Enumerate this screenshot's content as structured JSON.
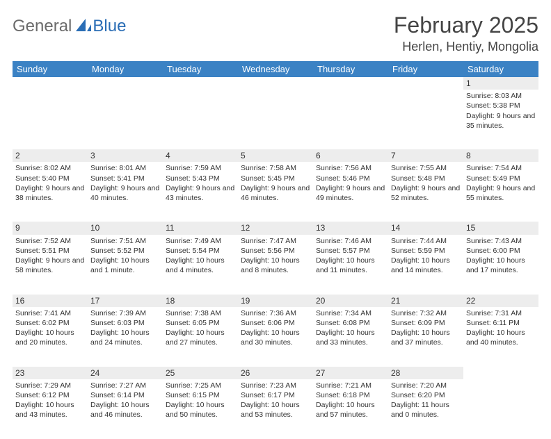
{
  "logo": {
    "text1": "General",
    "text2": "Blue"
  },
  "title": "February 2025",
  "location": "Herlen, Hentiy, Mongolia",
  "colors": {
    "header_bg": "#3b82c4",
    "header_text": "#ffffff",
    "daynum_bg": "#ededed",
    "text": "#333333",
    "logo_gray": "#6b6b6b",
    "logo_blue": "#2a6db5"
  },
  "weekdays": [
    "Sunday",
    "Monday",
    "Tuesday",
    "Wednesday",
    "Thursday",
    "Friday",
    "Saturday"
  ],
  "weeks": [
    [
      null,
      null,
      null,
      null,
      null,
      null,
      {
        "n": "1",
        "sr": "Sunrise: 8:03 AM",
        "ss": "Sunset: 5:38 PM",
        "dl": "Daylight: 9 hours and 35 minutes."
      }
    ],
    [
      {
        "n": "2",
        "sr": "Sunrise: 8:02 AM",
        "ss": "Sunset: 5:40 PM",
        "dl": "Daylight: 9 hours and 38 minutes."
      },
      {
        "n": "3",
        "sr": "Sunrise: 8:01 AM",
        "ss": "Sunset: 5:41 PM",
        "dl": "Daylight: 9 hours and 40 minutes."
      },
      {
        "n": "4",
        "sr": "Sunrise: 7:59 AM",
        "ss": "Sunset: 5:43 PM",
        "dl": "Daylight: 9 hours and 43 minutes."
      },
      {
        "n": "5",
        "sr": "Sunrise: 7:58 AM",
        "ss": "Sunset: 5:45 PM",
        "dl": "Daylight: 9 hours and 46 minutes."
      },
      {
        "n": "6",
        "sr": "Sunrise: 7:56 AM",
        "ss": "Sunset: 5:46 PM",
        "dl": "Daylight: 9 hours and 49 minutes."
      },
      {
        "n": "7",
        "sr": "Sunrise: 7:55 AM",
        "ss": "Sunset: 5:48 PM",
        "dl": "Daylight: 9 hours and 52 minutes."
      },
      {
        "n": "8",
        "sr": "Sunrise: 7:54 AM",
        "ss": "Sunset: 5:49 PM",
        "dl": "Daylight: 9 hours and 55 minutes."
      }
    ],
    [
      {
        "n": "9",
        "sr": "Sunrise: 7:52 AM",
        "ss": "Sunset: 5:51 PM",
        "dl": "Daylight: 9 hours and 58 minutes."
      },
      {
        "n": "10",
        "sr": "Sunrise: 7:51 AM",
        "ss": "Sunset: 5:52 PM",
        "dl": "Daylight: 10 hours and 1 minute."
      },
      {
        "n": "11",
        "sr": "Sunrise: 7:49 AM",
        "ss": "Sunset: 5:54 PM",
        "dl": "Daylight: 10 hours and 4 minutes."
      },
      {
        "n": "12",
        "sr": "Sunrise: 7:47 AM",
        "ss": "Sunset: 5:56 PM",
        "dl": "Daylight: 10 hours and 8 minutes."
      },
      {
        "n": "13",
        "sr": "Sunrise: 7:46 AM",
        "ss": "Sunset: 5:57 PM",
        "dl": "Daylight: 10 hours and 11 minutes."
      },
      {
        "n": "14",
        "sr": "Sunrise: 7:44 AM",
        "ss": "Sunset: 5:59 PM",
        "dl": "Daylight: 10 hours and 14 minutes."
      },
      {
        "n": "15",
        "sr": "Sunrise: 7:43 AM",
        "ss": "Sunset: 6:00 PM",
        "dl": "Daylight: 10 hours and 17 minutes."
      }
    ],
    [
      {
        "n": "16",
        "sr": "Sunrise: 7:41 AM",
        "ss": "Sunset: 6:02 PM",
        "dl": "Daylight: 10 hours and 20 minutes."
      },
      {
        "n": "17",
        "sr": "Sunrise: 7:39 AM",
        "ss": "Sunset: 6:03 PM",
        "dl": "Daylight: 10 hours and 24 minutes."
      },
      {
        "n": "18",
        "sr": "Sunrise: 7:38 AM",
        "ss": "Sunset: 6:05 PM",
        "dl": "Daylight: 10 hours and 27 minutes."
      },
      {
        "n": "19",
        "sr": "Sunrise: 7:36 AM",
        "ss": "Sunset: 6:06 PM",
        "dl": "Daylight: 10 hours and 30 minutes."
      },
      {
        "n": "20",
        "sr": "Sunrise: 7:34 AM",
        "ss": "Sunset: 6:08 PM",
        "dl": "Daylight: 10 hours and 33 minutes."
      },
      {
        "n": "21",
        "sr": "Sunrise: 7:32 AM",
        "ss": "Sunset: 6:09 PM",
        "dl": "Daylight: 10 hours and 37 minutes."
      },
      {
        "n": "22",
        "sr": "Sunrise: 7:31 AM",
        "ss": "Sunset: 6:11 PM",
        "dl": "Daylight: 10 hours and 40 minutes."
      }
    ],
    [
      {
        "n": "23",
        "sr": "Sunrise: 7:29 AM",
        "ss": "Sunset: 6:12 PM",
        "dl": "Daylight: 10 hours and 43 minutes."
      },
      {
        "n": "24",
        "sr": "Sunrise: 7:27 AM",
        "ss": "Sunset: 6:14 PM",
        "dl": "Daylight: 10 hours and 46 minutes."
      },
      {
        "n": "25",
        "sr": "Sunrise: 7:25 AM",
        "ss": "Sunset: 6:15 PM",
        "dl": "Daylight: 10 hours and 50 minutes."
      },
      {
        "n": "26",
        "sr": "Sunrise: 7:23 AM",
        "ss": "Sunset: 6:17 PM",
        "dl": "Daylight: 10 hours and 53 minutes."
      },
      {
        "n": "27",
        "sr": "Sunrise: 7:21 AM",
        "ss": "Sunset: 6:18 PM",
        "dl": "Daylight: 10 hours and 57 minutes."
      },
      {
        "n": "28",
        "sr": "Sunrise: 7:20 AM",
        "ss": "Sunset: 6:20 PM",
        "dl": "Daylight: 11 hours and 0 minutes."
      },
      null
    ]
  ]
}
